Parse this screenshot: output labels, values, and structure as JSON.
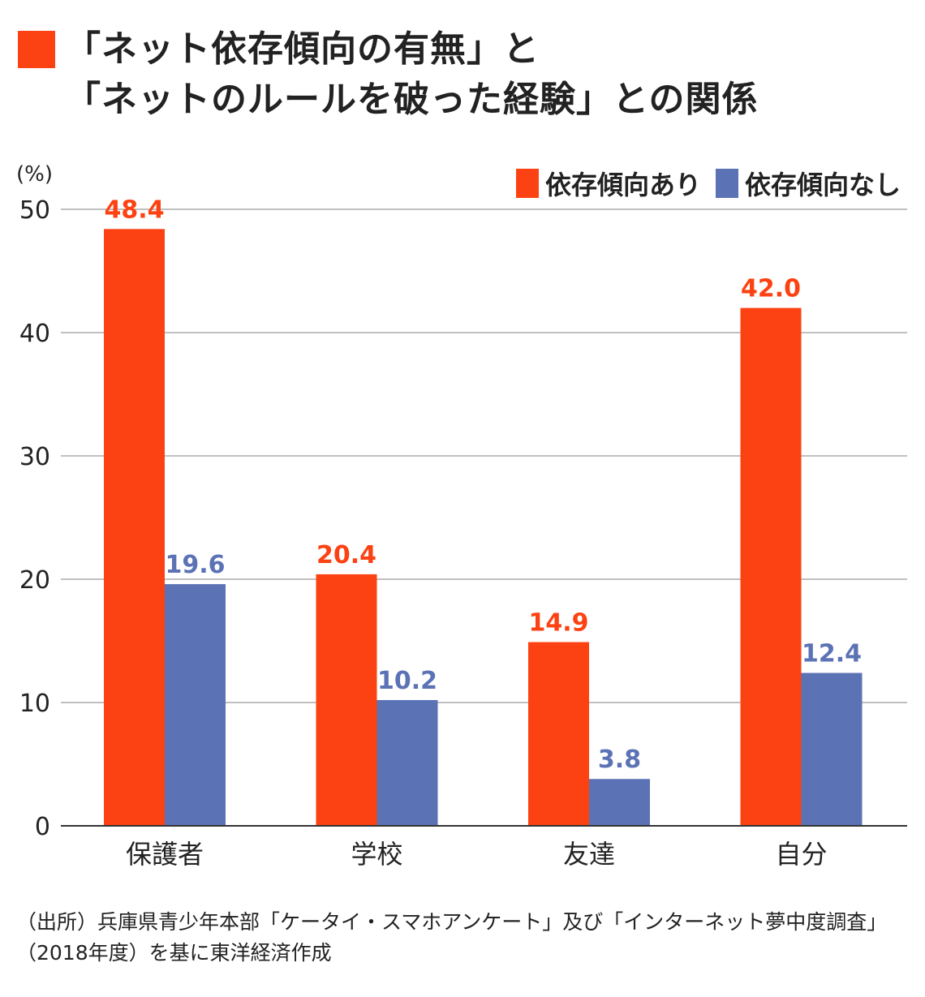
{
  "title": {
    "line1": "「ネット依存傾向の有無」と",
    "line2": "「ネットのルールを破った経験」との関係",
    "accent_color": "#fc4213"
  },
  "chart_data": {
    "type": "bar",
    "unit_label": "(%)",
    "categories": [
      "保護者",
      "学校",
      "友達",
      "自分"
    ],
    "series": [
      {
        "name": "依存傾向あり",
        "color": "#fc4213",
        "values": [
          48.4,
          20.4,
          14.9,
          42.0
        ],
        "labels": [
          "48.4",
          "20.4",
          "14.9",
          "42.0"
        ]
      },
      {
        "name": "依存傾向なし",
        "color": "#5b72b5",
        "values": [
          19.6,
          10.2,
          3.8,
          12.4
        ],
        "labels": [
          "19.6",
          "10.2",
          "3.8",
          "12.4"
        ]
      }
    ],
    "ylim": [
      0,
      50
    ],
    "yticks": [
      "0",
      "10",
      "20",
      "30",
      "40",
      "50"
    ],
    "grid": true,
    "legend_position": "top-right"
  },
  "source": {
    "line1": "（出所）兵庫県青少年本部「ケータイ・スマホアンケート」及び「インターネット夢中度調査」",
    "line2": "（2018年度）を基に東洋経済作成"
  }
}
